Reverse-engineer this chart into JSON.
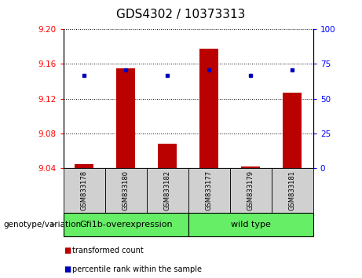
{
  "title": "GDS4302 / 10373313",
  "samples": [
    "GSM833178",
    "GSM833180",
    "GSM833182",
    "GSM833177",
    "GSM833179",
    "GSM833181"
  ],
  "bar_values": [
    9.045,
    9.155,
    9.068,
    9.178,
    9.042,
    9.127
  ],
  "percentile_values": [
    67,
    71,
    67,
    71,
    67,
    71
  ],
  "bar_bottom": 9.04,
  "ylim_left": [
    9.04,
    9.2
  ],
  "ylim_right": [
    0,
    100
  ],
  "yticks_left": [
    9.04,
    9.08,
    9.12,
    9.16,
    9.2
  ],
  "yticks_right": [
    0,
    25,
    50,
    75,
    100
  ],
  "bar_color": "#bb0000",
  "dot_color": "#0000bb",
  "group1_label": "Gfi1b-overexpression",
  "group2_label": "wild type",
  "group1_indices": [
    0,
    1,
    2
  ],
  "group2_indices": [
    3,
    4,
    5
  ],
  "group_color": "#66ee66",
  "sample_box_color": "#d0d0d0",
  "xlabel_left": "genotype/variation",
  "legend_bar_label": "transformed count",
  "legend_dot_label": "percentile rank within the sample",
  "title_fontsize": 11,
  "tick_fontsize": 7.5,
  "label_fontsize": 7.5,
  "sample_fontsize": 6,
  "group_fontsize": 8
}
